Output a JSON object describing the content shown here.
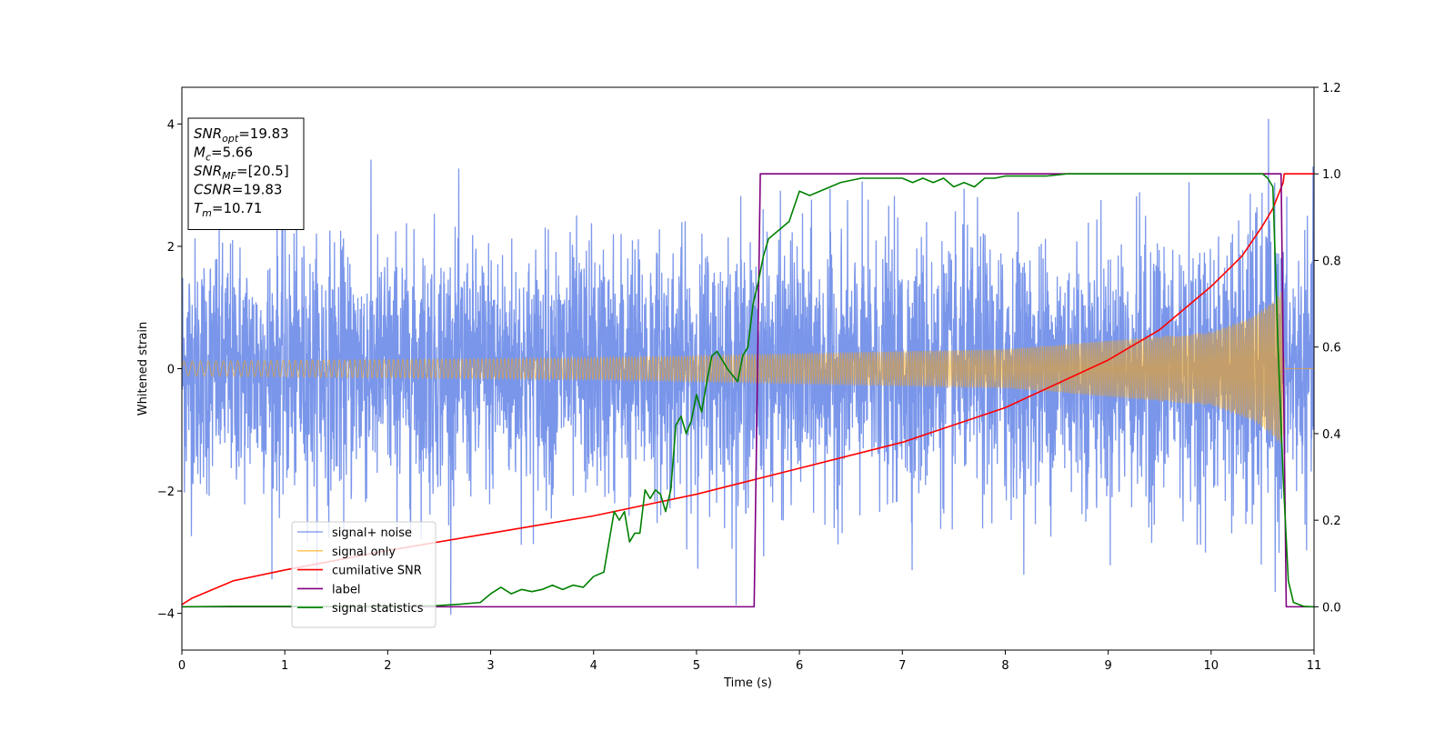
{
  "chart_data": {
    "type": "line",
    "title": "",
    "xlabel": "Time (s)",
    "ylabel": "Whitened strain",
    "y2label": "",
    "xlim": [
      0,
      11
    ],
    "ylim": [
      -4.6,
      4.6
    ],
    "y2lim": [
      -0.1,
      1.2
    ],
    "xticks": [
      "0",
      "1",
      "2",
      "3",
      "4",
      "5",
      "6",
      "7",
      "8",
      "9",
      "10",
      "11"
    ],
    "yticks": [
      "−4",
      "−2",
      "0",
      "2",
      "4"
    ],
    "y2ticks": [
      "0.0",
      "0.2",
      "0.4",
      "0.6",
      "0.8",
      "1.0",
      "1.2"
    ],
    "legend_position": "lower-left",
    "grid": false,
    "series": [
      {
        "name": "signal+ noise",
        "color": "#4169e1",
        "axis": "left",
        "noise_sigma": 1.0,
        "signal_envelope": {
          "t": [
            0,
            4,
            8,
            10,
            10.4,
            10.6,
            10.7,
            10.71,
            11
          ],
          "amp": [
            0.12,
            0.18,
            0.32,
            0.6,
            0.85,
            1.1,
            1.3,
            0,
            0
          ]
        }
      },
      {
        "name": "signal only",
        "color": "#ffa500",
        "axis": "left",
        "signal_envelope": {
          "t": [
            0,
            4,
            8,
            10,
            10.4,
            10.6,
            10.7,
            10.71,
            11
          ],
          "amp": [
            0.12,
            0.18,
            0.32,
            0.6,
            0.85,
            1.1,
            1.3,
            0,
            0
          ]
        }
      },
      {
        "name": "cumilative SNR",
        "color": "#ff0000",
        "axis": "right",
        "x": [
          0,
          0.1,
          0.5,
          1,
          2,
          3,
          4,
          5,
          6,
          7,
          8,
          9,
          9.5,
          10,
          10.3,
          10.5,
          10.6,
          10.7,
          10.71,
          11
        ],
        "y": [
          0.005,
          0.02,
          0.06,
          0.085,
          0.13,
          0.17,
          0.21,
          0.26,
          0.32,
          0.38,
          0.46,
          0.57,
          0.64,
          0.74,
          0.81,
          0.88,
          0.92,
          0.98,
          1.0,
          1.0
        ]
      },
      {
        "name": "label",
        "color": "#800080",
        "axis": "right",
        "x": [
          0,
          5.56,
          5.62,
          10.68,
          10.73,
          11
        ],
        "y": [
          0,
          0,
          1,
          1,
          0,
          0
        ]
      },
      {
        "name": "signal statistics",
        "color": "#008000",
        "axis": "right",
        "x": [
          0,
          0.5,
          1,
          1.5,
          2,
          2.3,
          2.5,
          2.7,
          2.9,
          3.0,
          3.1,
          3.2,
          3.3,
          3.4,
          3.5,
          3.6,
          3.7,
          3.8,
          3.9,
          4.0,
          4.1,
          4.2,
          4.25,
          4.3,
          4.35,
          4.4,
          4.45,
          4.5,
          4.55,
          4.6,
          4.65,
          4.7,
          4.75,
          4.8,
          4.85,
          4.9,
          4.95,
          5.0,
          5.05,
          5.1,
          5.15,
          5.2,
          5.3,
          5.4,
          5.45,
          5.5,
          5.55,
          5.6,
          5.65,
          5.7,
          5.8,
          5.9,
          6.0,
          6.1,
          6.2,
          6.3,
          6.4,
          6.5,
          6.6,
          6.7,
          6.8,
          6.9,
          7.0,
          7.1,
          7.2,
          7.3,
          7.4,
          7.5,
          7.6,
          7.7,
          7.8,
          7.9,
          8.0,
          8.2,
          8.4,
          8.6,
          8.8,
          9.0,
          9.2,
          9.4,
          9.6,
          9.8,
          10.0,
          10.2,
          10.4,
          10.5,
          10.55,
          10.6,
          10.65,
          10.7,
          10.75,
          10.8,
          10.9,
          11.0
        ],
        "y": [
          0,
          0.001,
          0.001,
          0.001,
          0.001,
          0.002,
          0.003,
          0.006,
          0.01,
          0.03,
          0.045,
          0.03,
          0.04,
          0.035,
          0.04,
          0.05,
          0.04,
          0.05,
          0.045,
          0.07,
          0.08,
          0.22,
          0.2,
          0.22,
          0.15,
          0.17,
          0.17,
          0.27,
          0.25,
          0.27,
          0.26,
          0.22,
          0.27,
          0.42,
          0.44,
          0.4,
          0.43,
          0.49,
          0.45,
          0.52,
          0.58,
          0.59,
          0.55,
          0.52,
          0.58,
          0.6,
          0.7,
          0.75,
          0.81,
          0.85,
          0.87,
          0.89,
          0.96,
          0.95,
          0.96,
          0.97,
          0.98,
          0.985,
          0.99,
          0.99,
          0.99,
          0.99,
          0.99,
          0.98,
          0.99,
          0.98,
          0.99,
          0.97,
          0.98,
          0.97,
          0.99,
          0.99,
          0.995,
          0.995,
          0.995,
          1.0,
          1.0,
          1.0,
          1.0,
          1.0,
          1.0,
          1.0,
          1.0,
          1.0,
          1.0,
          1.0,
          0.99,
          0.97,
          0.6,
          0.3,
          0.06,
          0.01,
          0.001,
          0.0
        ]
      }
    ],
    "annotations": [
      {
        "label": "SNR",
        "sub": "opt",
        "value": "=19.83"
      },
      {
        "label": "M",
        "sub": "c",
        "value": "=5.66"
      },
      {
        "label": "SNR",
        "sub": "MF",
        "value": "=[20.5]"
      },
      {
        "label": "CSNR",
        "sub": "",
        "value": "=19.83"
      },
      {
        "label": "T",
        "sub": "m",
        "value": "=10.71"
      }
    ]
  }
}
